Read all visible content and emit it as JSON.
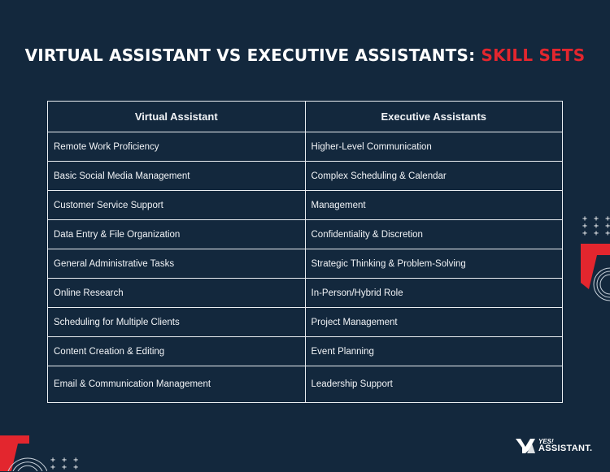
{
  "title": {
    "main": "VIRTUAL ASSISTANT VS EXECUTIVE ASSISTANTS: ",
    "accent": "SKILL SETS"
  },
  "table": {
    "headers": [
      "Virtual Assistant",
      "Executive Assistants"
    ],
    "rows": [
      [
        "Remote Work Proficiency",
        "Higher-Level Communication"
      ],
      [
        "Basic Social Media Management",
        "Complex Scheduling & Calendar"
      ],
      [
        "Customer Service Support",
        "Management"
      ],
      [
        "Data Entry & File Organization",
        "Confidentiality & Discretion"
      ],
      [
        "General Administrative Tasks",
        "Strategic Thinking & Problem-Solving"
      ],
      [
        "Online Research",
        "In-Person/Hybrid Role"
      ],
      [
        "Scheduling for Multiple Clients",
        "Project Management"
      ],
      [
        "Content Creation & Editing",
        "Event Planning"
      ],
      [
        "Email & Communication Management",
        "Leadership Support"
      ]
    ]
  },
  "logo": {
    "icon": "ya-monogram-icon",
    "yes": "YES!",
    "name": "ASSISTANT."
  },
  "colors": {
    "background": "#13283d",
    "accent": "#e3262e",
    "border": "#e9edf1"
  }
}
